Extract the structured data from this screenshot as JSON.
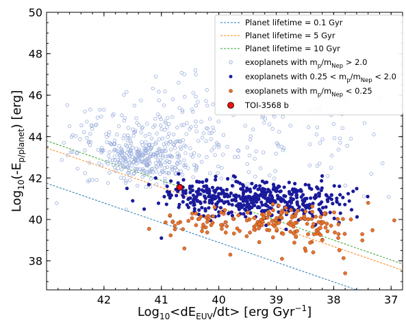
{
  "chart_data": {
    "type": "scatter",
    "xlabel": {
      "main": "Log",
      "sub": "10",
      "rest": "<dE",
      "sub2": "EUV",
      "rest2": "/dt> [erg Gyr",
      "sup": "−1",
      "end": "]"
    },
    "ylabel": {
      "main": "Log",
      "sub": "10",
      "rest": "(-E",
      "sub2": "p/planet",
      "end": ") [erg]"
    },
    "xlim": [
      43.0,
      36.8
    ],
    "ylim": [
      36.6,
      50.0
    ],
    "x_ticks": [
      42,
      41,
      40,
      39,
      38,
      37
    ],
    "y_ticks": [
      38,
      40,
      42,
      44,
      46,
      48,
      50
    ],
    "x_tick_labels": [
      "42",
      "41",
      "40",
      "39",
      "38",
      "37"
    ],
    "y_tick_labels": [
      "38",
      "40",
      "42",
      "44",
      "46",
      "48",
      "50"
    ],
    "legend_position": "top-right",
    "lines": [
      {
        "name": "Planet lifetime = 0.1 Gyr",
        "color": "#1f77b4",
        "style": "dashed",
        "points": [
          [
            43.0,
            41.75
          ],
          [
            37.6,
            36.6
          ]
        ]
      },
      {
        "name": "Planet lifetime = 5 Gyr",
        "color": "#ff7f0e",
        "style": "dashed",
        "points": [
          [
            43.0,
            43.45
          ],
          [
            36.8,
            37.55
          ]
        ]
      },
      {
        "name": "Planet lifetime = 10 Gyr",
        "color": "#2ca02c",
        "style": "dashed",
        "points": [
          [
            43.0,
            43.8
          ],
          [
            36.8,
            37.85
          ]
        ]
      }
    ],
    "series": [
      {
        "name": "exoplanets with m_p/m_Nep > 2.0",
        "legend_parts": [
          "exoplanets with m",
          "p",
          "/m",
          "Nep",
          " > 2.0"
        ],
        "color": "#9aaedc",
        "fill": "none",
        "size": 2.3,
        "clusters": [
          {
            "cx": 41.3,
            "cy": 42.9,
            "sx": 0.35,
            "sy": 0.5,
            "n": 220
          },
          {
            "cx": 40.8,
            "cy": 43.6,
            "sx": 0.9,
            "sy": 1.1,
            "n": 200
          },
          {
            "cx": 39.2,
            "cy": 44.2,
            "sx": 1.3,
            "sy": 1.5,
            "n": 90
          },
          {
            "cx": 41.9,
            "cy": 43.7,
            "sx": 0.5,
            "sy": 0.8,
            "n": 60
          }
        ],
        "points": [
          [
            40.6,
            47.0
          ],
          [
            40.4,
            47.0
          ],
          [
            40.7,
            46.6
          ],
          [
            41.1,
            46.9
          ],
          [
            37.8,
            45.8
          ],
          [
            37.3,
            44.1
          ],
          [
            37.7,
            43.9
          ],
          [
            38.3,
            44.1
          ],
          [
            38.0,
            44.6
          ],
          [
            42.6,
            44.5
          ],
          [
            42.7,
            43.7
          ],
          [
            42.0,
            45.3
          ],
          [
            39.8,
            46.5
          ],
          [
            39.5,
            46.0
          ],
          [
            39.0,
            45.4
          ],
          [
            40.8,
            45.8
          ],
          [
            40.2,
            45.5
          ],
          [
            38.4,
            45.3
          ]
        ]
      },
      {
        "name": "exoplanets with 0.25 < m_p/m_Nep < 2.0",
        "legend_parts": [
          "exoplanets with 0.25 < m",
          "p",
          "/m",
          "Nep",
          " < 2.0"
        ],
        "color": "#1a1a9c",
        "fill": "#1a1a9c",
        "size": 2.6,
        "clusters": [
          {
            "cx": 39.3,
            "cy": 41.0,
            "sx": 0.65,
            "sy": 0.45,
            "n": 300
          },
          {
            "cx": 38.6,
            "cy": 40.7,
            "sx": 0.45,
            "sy": 0.45,
            "n": 90
          },
          {
            "cx": 40.3,
            "cy": 41.2,
            "sx": 0.35,
            "sy": 0.4,
            "n": 80
          }
        ],
        "points": [
          [
            41.0,
            39.1
          ],
          [
            41.3,
            40.5
          ],
          [
            41.5,
            40.9
          ],
          [
            40.9,
            41.6
          ],
          [
            41.1,
            42.0
          ],
          [
            40.95,
            41.1
          ],
          [
            41.6,
            41.5
          ],
          [
            40.7,
            42.2
          ],
          [
            38.2,
            42.1
          ],
          [
            37.9,
            41.6
          ]
        ]
      },
      {
        "name": "exoplanets with m_p/m_Nep < 0.25",
        "legend_parts": [
          "exoplanets with m",
          "p",
          "/m",
          "Nep",
          " < 0.25"
        ],
        "color": "#e8742e",
        "fill": "#e8742e",
        "stroke": "#8a3a10",
        "size": 2.6,
        "clusters": [
          {
            "cx": 39.2,
            "cy": 39.9,
            "sx": 0.6,
            "sy": 0.35,
            "n": 90
          },
          {
            "cx": 38.4,
            "cy": 39.6,
            "sx": 0.45,
            "sy": 0.5,
            "n": 60
          },
          {
            "cx": 40.4,
            "cy": 39.8,
            "sx": 0.3,
            "sy": 0.35,
            "n": 30
          }
        ],
        "points": [
          [
            37.8,
            37.4
          ],
          [
            38.5,
            38.6
          ],
          [
            38.9,
            38.1
          ],
          [
            39.8,
            38.3
          ],
          [
            37.4,
            40.8
          ],
          [
            37.7,
            40.0
          ],
          [
            38.2,
            39.0
          ],
          [
            40.6,
            38.6
          ],
          [
            40.8,
            39.9
          ],
          [
            40.85,
            40.2
          ]
        ]
      },
      {
        "name": "TOI-3568 b",
        "color": "#ee1111",
        "fill": "#ee1111",
        "stroke": "#000000",
        "size": 4.5,
        "points": [
          [
            40.68,
            41.55
          ]
        ]
      }
    ]
  }
}
